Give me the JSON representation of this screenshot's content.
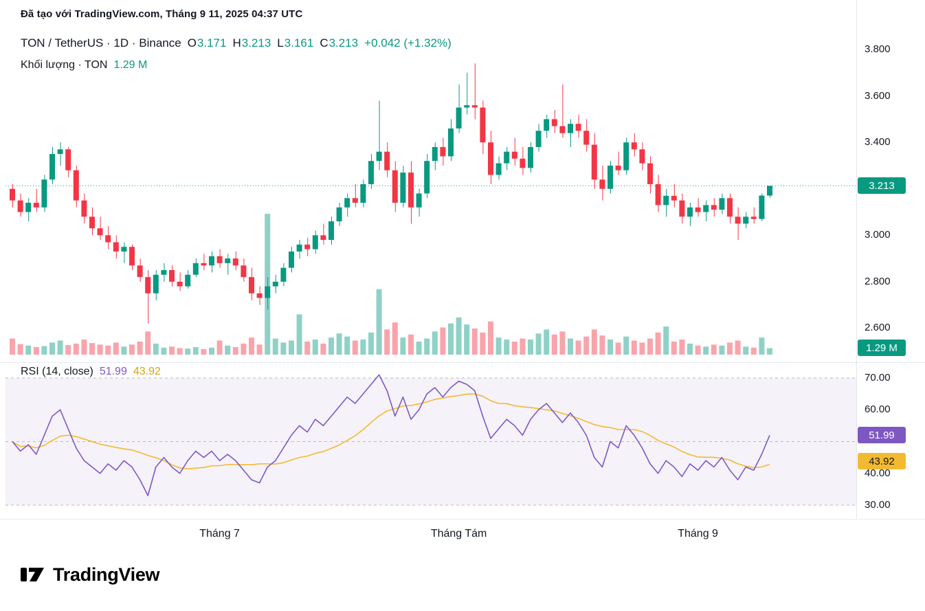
{
  "attribution": "Đã tạo với TradingView.com, Tháng 9 11, 2025 04:37 UTC",
  "legend": {
    "symbol": "TON / TetherUS · 1D · Binance",
    "o_label": "O",
    "o": "3.171",
    "h_label": "H",
    "h": "3.213",
    "l_label": "L",
    "l": "3.161",
    "c_label": "C",
    "c": "3.213",
    "change": "+0.042 (+1.32%)",
    "volume_label": "Khối lượng · TON",
    "volume_value": "1.29 M"
  },
  "rsi_legend": {
    "label": "RSI (14, close)",
    "rsi_value": "51.99",
    "ma_value": "43.92"
  },
  "badges": {
    "price": "3.213",
    "volume": "1.29 M",
    "rsi": "51.99",
    "rsi_ma": "43.92"
  },
  "footer": {
    "brand": "TradingView"
  },
  "colors": {
    "up": "#089981",
    "down": "#f23645",
    "volume_up": "rgba(8,153,129,0.45)",
    "volume_down": "rgba(242,54,69,0.45)",
    "rsi": "#7e57c2",
    "rsi_ma": "#f3ba2f",
    "rsi_band": "rgba(126,87,194,0.08)",
    "guide": "#b7b9c1",
    "badge_teal": "#089981",
    "badge_purple": "#7e57c2",
    "badge_yellow": "#f3ba2f"
  },
  "chart_data": [
    {
      "type": "candlestick",
      "title": "TON / TetherUS · 1D · Binance",
      "interval": "1D",
      "last_ohlc": {
        "o": 3.171,
        "h": 3.213,
        "l": 3.161,
        "c": 3.213,
        "change": 0.042,
        "change_pct": 1.32
      },
      "last_close": 3.213,
      "last_volume": 1.29,
      "volume_unit": "M",
      "volume_max": 28,
      "ylim": [
        2.48,
        3.88
      ],
      "y_ticks": [
        {
          "v": 3.8,
          "label": "3.800"
        },
        {
          "v": 3.6,
          "label": "3.600"
        },
        {
          "v": 3.4,
          "label": "3.400"
        },
        {
          "v": 3.0,
          "label": "3.000"
        },
        {
          "v": 2.8,
          "label": "2.800"
        },
        {
          "v": 2.6,
          "label": "2.600"
        }
      ],
      "x_ticks": [
        {
          "index": 26,
          "label": "Tháng 7"
        },
        {
          "index": 56,
          "label": "Tháng Tám"
        },
        {
          "index": 86,
          "label": "Tháng 9"
        }
      ],
      "ohlc": [
        [
          3.2,
          3.22,
          3.12,
          3.15
        ],
        [
          3.15,
          3.18,
          3.08,
          3.1
        ],
        [
          3.1,
          3.16,
          3.06,
          3.14
        ],
        [
          3.14,
          3.2,
          3.1,
          3.12
        ],
        [
          3.12,
          3.26,
          3.1,
          3.24
        ],
        [
          3.24,
          3.38,
          3.22,
          3.35
        ],
        [
          3.35,
          3.4,
          3.3,
          3.37
        ],
        [
          3.37,
          3.38,
          3.25,
          3.28
        ],
        [
          3.28,
          3.3,
          3.12,
          3.15
        ],
        [
          3.15,
          3.18,
          3.05,
          3.08
        ],
        [
          3.08,
          3.12,
          3.0,
          3.03
        ],
        [
          3.03,
          3.08,
          2.98,
          3.0
        ],
        [
          3.0,
          3.04,
          2.94,
          2.97
        ],
        [
          2.97,
          3.0,
          2.9,
          2.93
        ],
        [
          2.93,
          2.97,
          2.88,
          2.95
        ],
        [
          2.95,
          2.96,
          2.85,
          2.87
        ],
        [
          2.87,
          2.9,
          2.8,
          2.82
        ],
        [
          2.82,
          2.85,
          2.62,
          2.75
        ],
        [
          2.75,
          2.85,
          2.72,
          2.83
        ],
        [
          2.83,
          2.88,
          2.8,
          2.85
        ],
        [
          2.85,
          2.87,
          2.78,
          2.8
        ],
        [
          2.8,
          2.84,
          2.76,
          2.78
        ],
        [
          2.78,
          2.85,
          2.77,
          2.83
        ],
        [
          2.83,
          2.9,
          2.82,
          2.88
        ],
        [
          2.88,
          2.92,
          2.85,
          2.87
        ],
        [
          2.87,
          2.93,
          2.84,
          2.91
        ],
        [
          2.91,
          2.94,
          2.86,
          2.88
        ],
        [
          2.88,
          2.92,
          2.83,
          2.9
        ],
        [
          2.9,
          2.93,
          2.85,
          2.87
        ],
        [
          2.87,
          2.9,
          2.8,
          2.82
        ],
        [
          2.82,
          2.86,
          2.72,
          2.75
        ],
        [
          2.75,
          2.78,
          2.7,
          2.73
        ],
        [
          2.73,
          2.82,
          2.68,
          2.78
        ],
        [
          2.78,
          2.83,
          2.75,
          2.8
        ],
        [
          2.8,
          2.88,
          2.78,
          2.86
        ],
        [
          2.86,
          2.95,
          2.84,
          2.93
        ],
        [
          2.93,
          2.98,
          2.9,
          2.96
        ],
        [
          2.96,
          2.99,
          2.91,
          2.94
        ],
        [
          2.94,
          3.02,
          2.92,
          3.0
        ],
        [
          3.0,
          3.05,
          2.96,
          2.98
        ],
        [
          2.98,
          3.08,
          2.96,
          3.06
        ],
        [
          3.06,
          3.14,
          3.04,
          3.12
        ],
        [
          3.12,
          3.18,
          3.08,
          3.16
        ],
        [
          3.16,
          3.22,
          3.12,
          3.14
        ],
        [
          3.14,
          3.24,
          3.12,
          3.22
        ],
        [
          3.22,
          3.35,
          3.2,
          3.32
        ],
        [
          3.32,
          3.58,
          3.28,
          3.36
        ],
        [
          3.36,
          3.4,
          3.25,
          3.28
        ],
        [
          3.28,
          3.32,
          3.1,
          3.14
        ],
        [
          3.14,
          3.3,
          3.12,
          3.27
        ],
        [
          3.27,
          3.32,
          3.05,
          3.12
        ],
        [
          3.12,
          3.2,
          3.08,
          3.18
        ],
        [
          3.18,
          3.35,
          3.16,
          3.32
        ],
        [
          3.32,
          3.4,
          3.28,
          3.38
        ],
        [
          3.38,
          3.42,
          3.3,
          3.34
        ],
        [
          3.34,
          3.5,
          3.32,
          3.46
        ],
        [
          3.46,
          3.65,
          3.44,
          3.55
        ],
        [
          3.55,
          3.7,
          3.52,
          3.56
        ],
        [
          3.56,
          3.74,
          3.5,
          3.55
        ],
        [
          3.55,
          3.58,
          3.35,
          3.4
        ],
        [
          3.4,
          3.45,
          3.22,
          3.26
        ],
        [
          3.26,
          3.34,
          3.24,
          3.31
        ],
        [
          3.31,
          3.38,
          3.28,
          3.36
        ],
        [
          3.36,
          3.42,
          3.3,
          3.33
        ],
        [
          3.33,
          3.38,
          3.26,
          3.29
        ],
        [
          3.29,
          3.4,
          3.27,
          3.38
        ],
        [
          3.38,
          3.48,
          3.36,
          3.45
        ],
        [
          3.45,
          3.52,
          3.42,
          3.5
        ],
        [
          3.5,
          3.54,
          3.44,
          3.47
        ],
        [
          3.47,
          3.65,
          3.42,
          3.44
        ],
        [
          3.44,
          3.5,
          3.38,
          3.48
        ],
        [
          3.48,
          3.52,
          3.42,
          3.45
        ],
        [
          3.45,
          3.5,
          3.36,
          3.39
        ],
        [
          3.39,
          3.44,
          3.2,
          3.24
        ],
        [
          3.24,
          3.3,
          3.15,
          3.2
        ],
        [
          3.2,
          3.32,
          3.18,
          3.3
        ],
        [
          3.3,
          3.36,
          3.26,
          3.28
        ],
        [
          3.28,
          3.42,
          3.26,
          3.4
        ],
        [
          3.4,
          3.44,
          3.34,
          3.37
        ],
        [
          3.37,
          3.4,
          3.28,
          3.31
        ],
        [
          3.31,
          3.34,
          3.18,
          3.22
        ],
        [
          3.22,
          3.26,
          3.1,
          3.13
        ],
        [
          3.13,
          3.2,
          3.08,
          3.17
        ],
        [
          3.17,
          3.22,
          3.12,
          3.15
        ],
        [
          3.15,
          3.18,
          3.05,
          3.08
        ],
        [
          3.08,
          3.14,
          3.04,
          3.12
        ],
        [
          3.12,
          3.16,
          3.08,
          3.1
        ],
        [
          3.1,
          3.15,
          3.06,
          3.13
        ],
        [
          3.13,
          3.16,
          3.08,
          3.11
        ],
        [
          3.11,
          3.18,
          3.09,
          3.16
        ],
        [
          3.16,
          3.18,
          3.05,
          3.08
        ],
        [
          3.08,
          3.12,
          2.98,
          3.05
        ],
        [
          3.05,
          3.1,
          3.03,
          3.08
        ],
        [
          3.08,
          3.12,
          3.05,
          3.07
        ],
        [
          3.07,
          3.18,
          3.06,
          3.171
        ],
        [
          3.171,
          3.213,
          3.161,
          3.213
        ]
      ],
      "volume": [
        3.2,
        2.1,
        1.8,
        1.5,
        1.7,
        2.4,
        2.8,
        1.9,
        2.2,
        3.0,
        2.3,
        2.0,
        1.8,
        2.4,
        1.6,
        2.0,
        2.6,
        4.6,
        2.2,
        1.4,
        1.6,
        1.3,
        1.2,
        1.5,
        1.1,
        1.4,
        2.8,
        1.8,
        1.5,
        2.2,
        3.4,
        2.0,
        28.0,
        3.2,
        2.4,
        2.8,
        8.0,
        2.6,
        3.0,
        2.2,
        3.4,
        4.2,
        3.6,
        2.8,
        3.0,
        4.4,
        13.0,
        5.0,
        6.4,
        3.4,
        4.0,
        2.6,
        3.2,
        4.6,
        5.4,
        6.2,
        7.4,
        6.0,
        5.2,
        4.4,
        6.6,
        3.4,
        3.0,
        2.6,
        3.2,
        3.0,
        4.2,
        5.0,
        4.0,
        4.6,
        3.2,
        2.8,
        3.6,
        5.0,
        3.8,
        3.0,
        2.4,
        3.6,
        2.8,
        2.4,
        3.2,
        4.4,
        5.6,
        2.6,
        3.0,
        2.2,
        1.8,
        1.6,
        2.0,
        1.8,
        2.4,
        2.8,
        1.6,
        1.4,
        3.4,
        1.29
      ]
    },
    {
      "type": "line",
      "title": "RSI (14, close)",
      "ylim": [
        27.2,
        72.2
      ],
      "y_ticks": [
        {
          "v": 70,
          "label": "70.00"
        },
        {
          "v": 60,
          "label": "60.00"
        },
        {
          "v": 40,
          "label": "40.00"
        },
        {
          "v": 30,
          "label": "30.00"
        }
      ],
      "guides": [
        70,
        50,
        30
      ],
      "series": [
        {
          "name": "RSI (14)",
          "color": "#7e57c2",
          "last": 51.99,
          "values": [
            50,
            47,
            49,
            46,
            52,
            58,
            60,
            54,
            48,
            44,
            42,
            40,
            43,
            41,
            44,
            42,
            38,
            33,
            42,
            45,
            42,
            40,
            44,
            47,
            45,
            47,
            44,
            46,
            44,
            41,
            38,
            37,
            42,
            44,
            48,
            52,
            55,
            53,
            57,
            55,
            58,
            61,
            64,
            62,
            65,
            68,
            71,
            66,
            58,
            64,
            57,
            60,
            65,
            67,
            64,
            67,
            69,
            68,
            66,
            58,
            51,
            54,
            57,
            55,
            52,
            57,
            60,
            62,
            59,
            56,
            59,
            56,
            52,
            45,
            42,
            50,
            48,
            55,
            52,
            48,
            43,
            40,
            44,
            42,
            39,
            43,
            41,
            44,
            42,
            45,
            41,
            38,
            42,
            41,
            46,
            51.99
          ]
        },
        {
          "name": "RSI-based MA (14)",
          "color": "#f3ba2f",
          "last": 43.92,
          "period": 14,
          "derived_from": "SMA(14) of RSI series"
        }
      ]
    }
  ]
}
